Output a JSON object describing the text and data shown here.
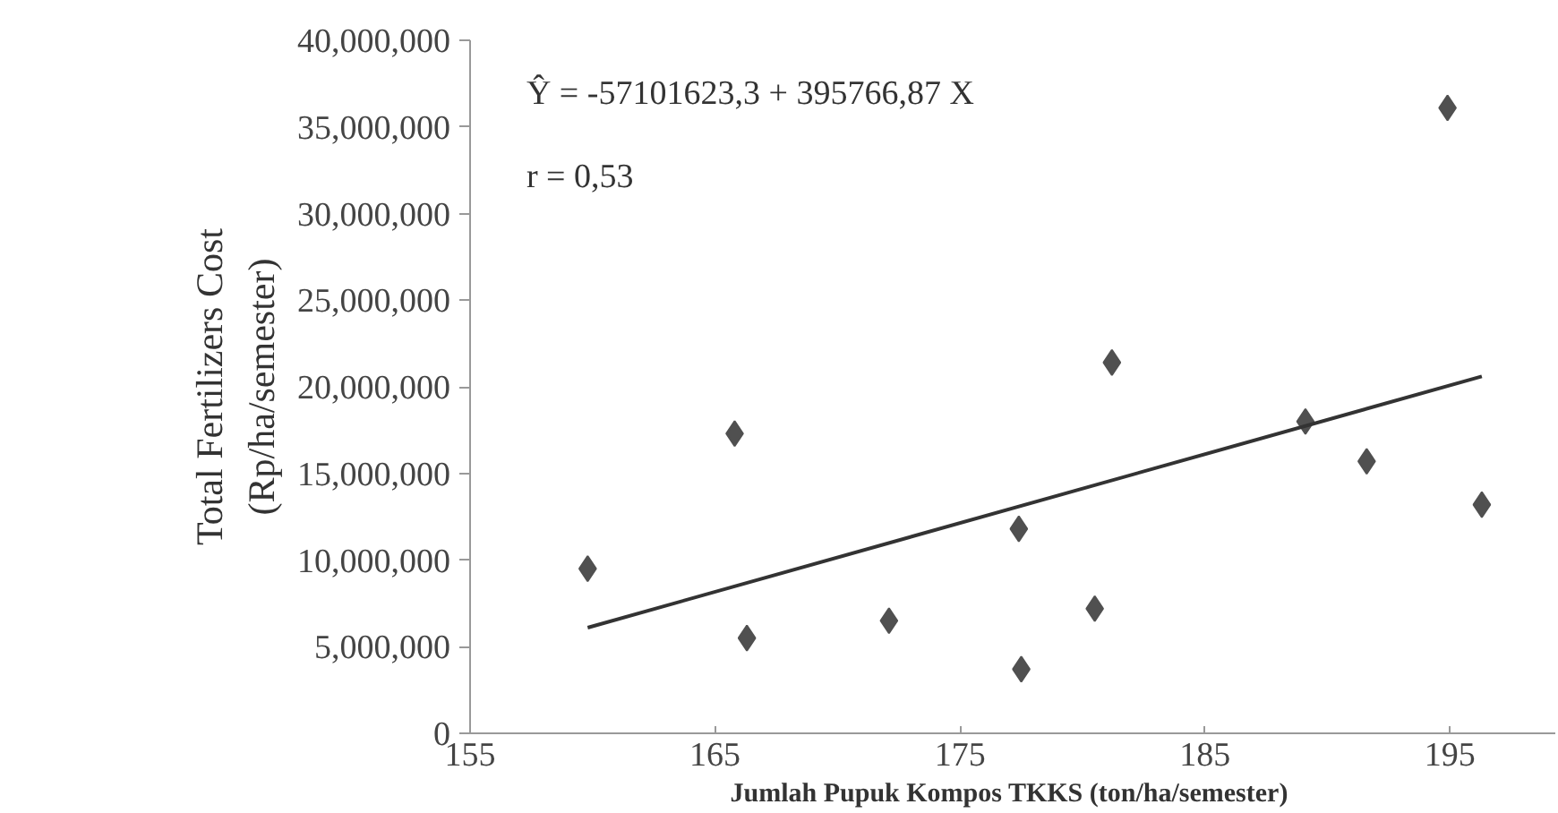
{
  "chart_data": {
    "type": "scatter",
    "xlabel": "Jumlah  Pupuk Kompos TKKS (ton/ha/semester)",
    "ylabel": "Total Fertilizers Cost\n(Rp/ha/semester)",
    "annotations": [
      "Ŷ = -57101623,3 + 395766,87 X",
      "r = 0,53"
    ],
    "xlim": [
      155,
      199.3
    ],
    "xticks": [
      155,
      165,
      175,
      185,
      195
    ],
    "ylim": [
      0,
      40000000
    ],
    "yticks": [
      {
        "value": 0,
        "label": "0"
      },
      {
        "value": 5000000,
        "label": "5,000,000"
      },
      {
        "value": 10000000,
        "label": "10,000,000"
      },
      {
        "value": 15000000,
        "label": "15,000,000"
      },
      {
        "value": 20000000,
        "label": "20,000,000"
      },
      {
        "value": 25000000,
        "label": "25,000,000"
      },
      {
        "value": 30000000,
        "label": "30,000,000"
      },
      {
        "value": 35000000,
        "label": "35,000,000"
      },
      {
        "value": 40000000,
        "label": "40,000,000"
      }
    ],
    "grid": false,
    "series": [
      {
        "marker": "diamond",
        "color": "#505050",
        "x": [
          159.8,
          165.8,
          166.3,
          172.1,
          177.4,
          177.5,
          180.5,
          181.2,
          189.1,
          191.6,
          194.9,
          196.3
        ],
        "values": [
          9500000,
          17300000,
          5500000,
          6500000,
          11800000,
          3700000,
          7200000,
          21400000,
          18000000,
          15700000,
          36100000,
          13200000
        ]
      },
      {
        "type": "line",
        "color": "#333333",
        "x": [
          159.8,
          196.3
        ],
        "values": [
          6100000,
          20600000
        ]
      }
    ]
  }
}
